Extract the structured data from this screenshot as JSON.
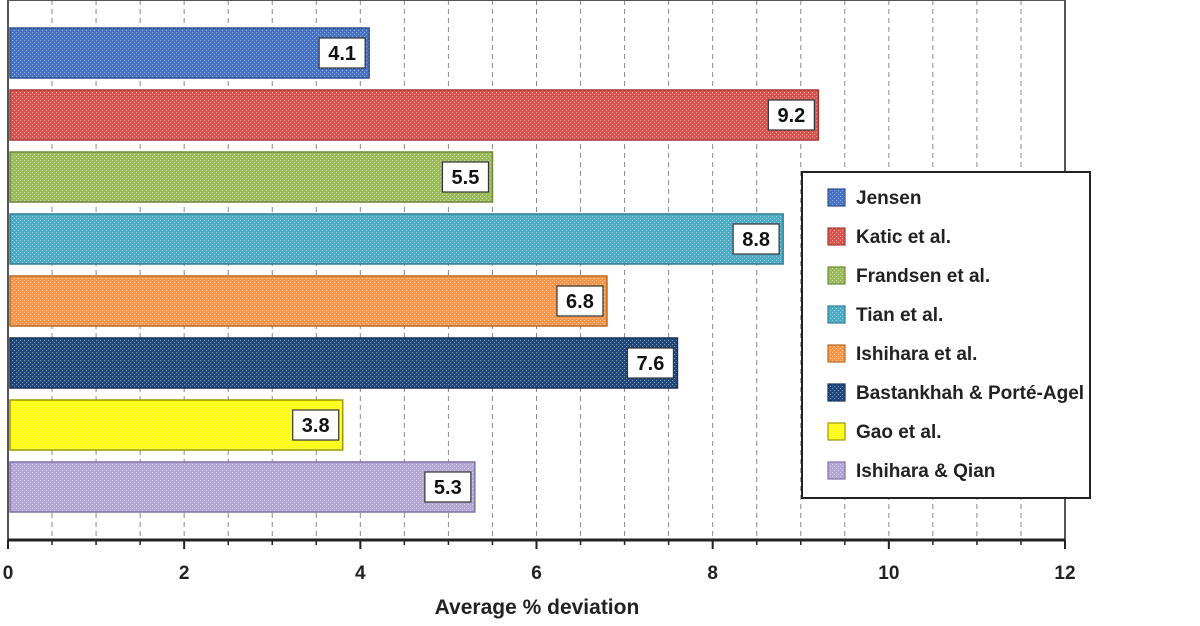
{
  "chart_data": {
    "type": "bar",
    "orientation": "horizontal",
    "xlabel": "Average % deviation",
    "xlim": [
      0,
      12
    ],
    "x_ticks": [
      0,
      2,
      4,
      6,
      8,
      10,
      12
    ],
    "x_tick_labels": [
      "0",
      "2",
      "4",
      "6",
      "8",
      "10",
      "12"
    ],
    "grid": "vertical dashed",
    "legend_position": "right",
    "series": [
      {
        "name": "Jensen",
        "value": 4.1,
        "label": "4.1",
        "color": "#4472C4",
        "edge": "#2F528F"
      },
      {
        "name": "Katic et al.",
        "value": 9.2,
        "label": "9.2",
        "color": "#D9534F",
        "edge": "#A33A37"
      },
      {
        "name": "Frandsen et al.",
        "value": 5.5,
        "label": "5.5",
        "color": "#9BBB59",
        "edge": "#6E8A3A"
      },
      {
        "name": "Tian et al.",
        "value": 8.8,
        "label": "8.8",
        "color": "#4BACC6",
        "edge": "#2E7F96"
      },
      {
        "name": "Ishihara et al.",
        "value": 6.8,
        "label": "6.8",
        "color": "#F79646",
        "edge": "#B86A25"
      },
      {
        "name": "Bastankhah & Porté-Agel",
        "value": 7.6,
        "label": "7.6",
        "color": "#1F497D",
        "edge": "#12305A"
      },
      {
        "name": "Gao et al.",
        "value": 3.8,
        "label": "3.8",
        "color": "#FFFF00",
        "edge": "#9A9A00"
      },
      {
        "name": "Ishihara & Qian",
        "value": 5.3,
        "label": "5.3",
        "color": "#B4A7D6",
        "edge": "#7E70A8"
      }
    ]
  }
}
